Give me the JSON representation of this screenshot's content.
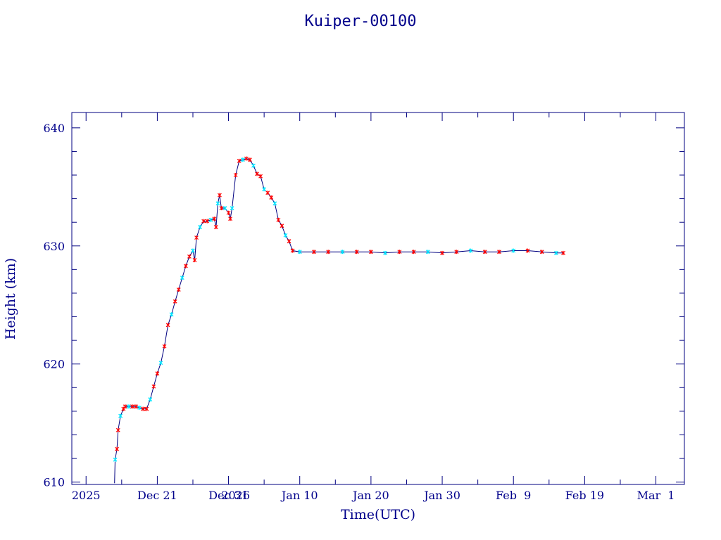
{
  "chart_data": {
    "type": "line",
    "title": "Kuiper-00100",
    "xlabel": "Time(UTC)",
    "ylabel": "Height (km)",
    "ylim": [
      609.8,
      641.3
    ],
    "xlim": [
      "2025-12-09",
      "2026-03-05"
    ],
    "x_ticks": [
      {
        "x": "2025-12-11",
        "label": "2025"
      },
      {
        "x": "2025-12-21",
        "label": "Dec 21"
      },
      {
        "x": "2025-12-31",
        "label": "Dec 31"
      },
      {
        "x": "2026-01-01",
        "label": "2026"
      },
      {
        "x": "2026-01-10",
        "label": "Jan 10"
      },
      {
        "x": "2026-01-20",
        "label": "Jan 20"
      },
      {
        "x": "2026-01-30",
        "label": "Jan 30"
      },
      {
        "x": "2026-02-09",
        "label": "Feb  9"
      },
      {
        "x": "2026-02-19",
        "label": "Feb 19"
      },
      {
        "x": "2026-03-01",
        "label": "Mar  1"
      }
    ],
    "y_ticks": [
      610,
      620,
      630,
      640
    ],
    "grid": false,
    "colors": {
      "line": "#000080",
      "marker_a": "#ff0000",
      "marker_b": "#00e5ff",
      "axis": "#000080"
    },
    "series": [
      {
        "values": [
          [
            "2025-12-15T00:00",
            609.9
          ],
          [
            "2025-12-15T02:00",
            611.9
          ],
          [
            "2025-12-15T08:00",
            612.8
          ],
          [
            "2025-12-15T12:00",
            614.4
          ],
          [
            "2025-12-15T20:00",
            615.6
          ],
          [
            "2025-12-16T06:00",
            616.2
          ],
          [
            "2025-12-16T12:00",
            616.4
          ],
          [
            "2025-12-17T00:00",
            616.4
          ],
          [
            "2025-12-17T12:00",
            616.4
          ],
          [
            "2025-12-18T00:00",
            616.4
          ],
          [
            "2025-12-18T12:00",
            616.3
          ],
          [
            "2025-12-19T00:00",
            616.2
          ],
          [
            "2025-12-19T12:00",
            616.2
          ],
          [
            "2025-12-20T00:00",
            617.0
          ],
          [
            "2025-12-20T12:00",
            618.1
          ],
          [
            "2025-12-21T00:00",
            619.2
          ],
          [
            "2025-12-21T12:00",
            620.1
          ],
          [
            "2025-12-22T00:00",
            621.5
          ],
          [
            "2025-12-22T12:00",
            623.3
          ],
          [
            "2025-12-23T00:00",
            624.2
          ],
          [
            "2025-12-23T12:00",
            625.3
          ],
          [
            "2025-12-24T00:00",
            626.3
          ],
          [
            "2025-12-24T12:00",
            627.3
          ],
          [
            "2025-12-25T00:00",
            628.3
          ],
          [
            "2025-12-25T12:00",
            629.1
          ],
          [
            "2025-12-26T00:00",
            629.6
          ],
          [
            "2025-12-26T06:00",
            628.8
          ],
          [
            "2025-12-26T12:00",
            630.7
          ],
          [
            "2025-12-27T00:00",
            631.6
          ],
          [
            "2025-12-27T12:00",
            632.1
          ],
          [
            "2025-12-28T00:00",
            632.1
          ],
          [
            "2025-12-28T12:00",
            632.2
          ],
          [
            "2025-12-29T00:00",
            632.3
          ],
          [
            "2025-12-29T06:00",
            631.6
          ],
          [
            "2025-12-29T12:00",
            633.6
          ],
          [
            "2025-12-29T18:00",
            634.3
          ],
          [
            "2025-12-30T00:00",
            633.2
          ],
          [
            "2025-12-30T12:00",
            633.2
          ],
          [
            "2025-12-31T00:00",
            632.8
          ],
          [
            "2025-12-31T06:00",
            632.3
          ],
          [
            "2025-12-31T12:00",
            633.2
          ],
          [
            "2026-01-01T00:00",
            636.0
          ],
          [
            "2026-01-01T12:00",
            637.2
          ],
          [
            "2026-01-02T00:00",
            637.3
          ],
          [
            "2026-01-02T12:00",
            637.4
          ],
          [
            "2026-01-03T00:00",
            637.3
          ],
          [
            "2026-01-03T12:00",
            636.8
          ],
          [
            "2026-01-04T00:00",
            636.1
          ],
          [
            "2026-01-04T12:00",
            635.9
          ],
          [
            "2026-01-05T00:00",
            634.8
          ],
          [
            "2026-01-05T12:00",
            634.5
          ],
          [
            "2026-01-06T00:00",
            634.1
          ],
          [
            "2026-01-06T12:00",
            633.6
          ],
          [
            "2026-01-07T00:00",
            632.2
          ],
          [
            "2026-01-07T12:00",
            631.7
          ],
          [
            "2026-01-08T00:00",
            630.9
          ],
          [
            "2026-01-08T12:00",
            630.4
          ],
          [
            "2026-01-09T00:00",
            629.6
          ],
          [
            "2026-01-10T00:00",
            629.5
          ],
          [
            "2026-01-12T00:00",
            629.5
          ],
          [
            "2026-01-14T00:00",
            629.5
          ],
          [
            "2026-01-16T00:00",
            629.5
          ],
          [
            "2026-01-18T00:00",
            629.5
          ],
          [
            "2026-01-20T00:00",
            629.5
          ],
          [
            "2026-01-22T00:00",
            629.4
          ],
          [
            "2026-01-24T00:00",
            629.5
          ],
          [
            "2026-01-26T00:00",
            629.5
          ],
          [
            "2026-01-28T00:00",
            629.5
          ],
          [
            "2026-01-30T00:00",
            629.4
          ],
          [
            "2026-02-01T00:00",
            629.5
          ],
          [
            "2026-02-03T00:00",
            629.6
          ],
          [
            "2026-02-05T00:00",
            629.5
          ],
          [
            "2026-02-07T00:00",
            629.5
          ],
          [
            "2026-02-09T00:00",
            629.6
          ],
          [
            "2026-02-11T00:00",
            629.6
          ],
          [
            "2026-02-13T00:00",
            629.5
          ],
          [
            "2026-02-15T00:00",
            629.4
          ],
          [
            "2026-02-16T00:00",
            629.4
          ]
        ]
      }
    ]
  }
}
